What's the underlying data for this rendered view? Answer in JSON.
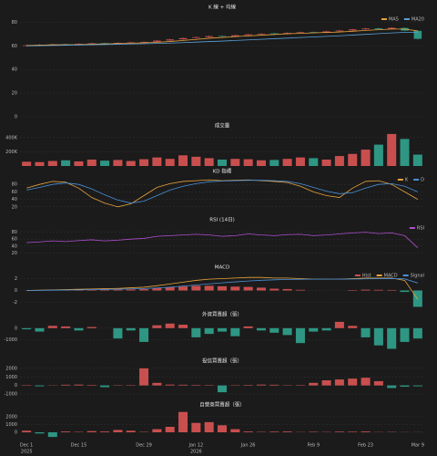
{
  "chart_data": [
    {
      "type": "candlestick",
      "title": "K 線 + 均線",
      "categories": [
        "Dec 1",
        null,
        null,
        null,
        "Dec 15",
        null,
        null,
        null,
        null,
        "Dec 29",
        null,
        null,
        null,
        "Jan 12",
        null,
        null,
        null,
        "Jan 26",
        null,
        null,
        null,
        null,
        "Feb 9",
        null,
        null,
        null,
        "Feb 23",
        null,
        null,
        null,
        "Mar 9"
      ],
      "category_years": [
        "2025",
        null,
        null,
        null,
        null,
        null,
        null,
        null,
        null,
        null,
        null,
        null,
        null,
        "2026",
        null,
        null,
        null,
        null,
        null,
        null,
        null,
        null,
        null,
        null,
        null,
        null,
        null,
        null,
        null,
        null,
        null
      ],
      "open": [
        60.0,
        60.6,
        61.1,
        61.4,
        61.2,
        61.9,
        62.3,
        62.1,
        62.7,
        63.1,
        63.5,
        64.6,
        65.6,
        66.8,
        67.5,
        68.4,
        68.1,
        69.1,
        69.9,
        70.6,
        70.2,
        71.1,
        71.7,
        71.3,
        72.4,
        73.1,
        74.1,
        74.9,
        74.3,
        75.2,
        72.8
      ],
      "high": [
        61.1,
        61.6,
        61.9,
        62.0,
        62.4,
        62.8,
        62.9,
        63.2,
        63.6,
        64.0,
        65.1,
        66.1,
        67.2,
        68.0,
        68.9,
        69.0,
        69.6,
        70.4,
        71.0,
        71.2,
        71.6,
        72.2,
        72.3,
        72.9,
        73.6,
        74.6,
        75.4,
        75.5,
        75.9,
        75.8,
        73.4
      ],
      "low": [
        59.4,
        60.0,
        60.5,
        60.5,
        60.6,
        61.3,
        61.4,
        61.5,
        62.1,
        62.5,
        62.9,
        64.0,
        65.0,
        66.2,
        66.9,
        67.4,
        67.5,
        68.5,
        69.3,
        69.5,
        69.6,
        70.5,
        70.6,
        70.7,
        71.8,
        72.5,
        73.5,
        73.6,
        73.7,
        72.4,
        65.4
      ],
      "close": [
        60.5,
        61.0,
        61.3,
        61.1,
        61.8,
        62.2,
        62.0,
        62.6,
        63.0,
        63.4,
        64.5,
        65.5,
        66.6,
        67.4,
        68.3,
        68.0,
        69.0,
        69.8,
        70.4,
        70.1,
        71.0,
        71.6,
        71.2,
        72.3,
        73.0,
        74.0,
        74.8,
        74.2,
        75.3,
        73.0,
        66.0
      ],
      "up_color": "#c94f4f",
      "down_color": "#2e9683",
      "series": [
        {
          "name": "MA5",
          "color": "#e8a33c",
          "values": [
            60.3,
            60.6,
            60.9,
            61.0,
            61.1,
            61.5,
            61.7,
            61.9,
            62.3,
            62.6,
            63.1,
            63.7,
            64.6,
            65.5,
            66.5,
            67.2,
            67.9,
            68.5,
            69.1,
            69.7,
            70.3,
            70.6,
            71.1,
            71.4,
            71.8,
            72.4,
            73.1,
            73.7,
            74.3,
            74.3,
            72.7
          ]
        },
        {
          "name": "MA20",
          "color": "#5aa0d8",
          "values": [
            60.0,
            60.2,
            60.4,
            60.6,
            60.8,
            61.0,
            61.2,
            61.4,
            61.6,
            61.8,
            62.1,
            62.4,
            62.8,
            63.2,
            63.7,
            64.1,
            64.6,
            65.1,
            65.6,
            66.1,
            66.6,
            67.1,
            67.6,
            68.1,
            68.6,
            69.2,
            69.8,
            70.4,
            71.0,
            71.5,
            71.6
          ]
        }
      ],
      "ylim": [
        0,
        85
      ],
      "yticks": [
        0,
        20,
        40,
        60,
        80
      ],
      "grid": true
    },
    {
      "type": "bar",
      "title": "成交量",
      "color_by": "price",
      "values": [
        60000,
        55000,
        70000,
        80000,
        65000,
        90000,
        75000,
        85000,
        70000,
        95000,
        120000,
        100000,
        150000,
        130000,
        110000,
        90000,
        100000,
        95000,
        80000,
        85000,
        100000,
        120000,
        110000,
        90000,
        140000,
        170000,
        230000,
        300000,
        450000,
        380000,
        160000
      ],
      "ylim": [
        0,
        500000
      ],
      "yticks": [
        {
          "value": 200000,
          "label": "200K"
        },
        {
          "value": 400000,
          "label": "400K"
        }
      ],
      "grid": true
    },
    {
      "type": "line",
      "title": "KD 指標",
      "series": [
        {
          "name": "K",
          "color": "#e8a33c",
          "values": [
            70,
            80,
            88,
            86,
            70,
            45,
            30,
            20,
            28,
            50,
            72,
            82,
            88,
            90,
            92,
            90,
            91,
            92,
            90,
            88,
            85,
            75,
            60,
            50,
            45,
            70,
            88,
            90,
            80,
            60,
            40
          ]
        },
        {
          "name": "D",
          "color": "#4a90d9",
          "values": [
            65,
            72,
            80,
            84,
            80,
            68,
            52,
            38,
            30,
            35,
            50,
            65,
            75,
            82,
            87,
            89,
            90,
            91,
            91,
            90,
            88,
            82,
            72,
            62,
            55,
            58,
            70,
            80,
            82,
            75,
            60
          ]
        }
      ],
      "ylim": [
        0,
        100
      ],
      "yticks": [
        20,
        40,
        60,
        80
      ],
      "grid": true
    },
    {
      "type": "line",
      "title": "RSI (14日)",
      "series": [
        {
          "name": "RSI",
          "color": "#b04fd0",
          "values": [
            50,
            52,
            55,
            53,
            56,
            58,
            55,
            57,
            60,
            62,
            68,
            70,
            72,
            74,
            72,
            68,
            70,
            75,
            72,
            70,
            73,
            74,
            70,
            72,
            75,
            78,
            80,
            76,
            78,
            70,
            35
          ]
        }
      ],
      "ylim": [
        0,
        100
      ],
      "yticks": [
        20,
        40,
        60,
        80
      ],
      "grid": true
    },
    {
      "type": "combo",
      "title": "MACD",
      "series": [
        {
          "name": "Hist",
          "kind": "bar",
          "color": "#c94f4f",
          "neg_color": "#2e9683",
          "values": [
            0,
            0.03,
            0.05,
            0.07,
            0.1,
            0.1,
            0.12,
            0.13,
            0.18,
            0.22,
            0.38,
            0.54,
            0.67,
            0.78,
            0.79,
            0.71,
            0.65,
            0.6,
            0.48,
            0.3,
            0.24,
            0.11,
            0,
            0,
            0,
            0.08,
            0.14,
            0.11,
            0.09,
            -0.25,
            -2.76
          ]
        },
        {
          "name": "MACD",
          "kind": "line",
          "color": "#e8a33c",
          "values": [
            0,
            0.05,
            0.1,
            0.15,
            0.2,
            0.25,
            0.3,
            0.35,
            0.45,
            0.55,
            0.8,
            1.1,
            1.4,
            1.7,
            1.9,
            2.0,
            2.1,
            2.2,
            2.2,
            2.1,
            2.1,
            2.0,
            1.9,
            1.9,
            1.9,
            2.0,
            2.1,
            2.1,
            2.1,
            1.7,
            -1.5
          ]
        },
        {
          "name": "Signal",
          "kind": "line",
          "color": "#4a90d9",
          "values": [
            0,
            0.02,
            0.05,
            0.08,
            0.1,
            0.15,
            0.18,
            0.22,
            0.27,
            0.33,
            0.42,
            0.56,
            0.73,
            0.92,
            1.11,
            1.29,
            1.45,
            1.6,
            1.72,
            1.8,
            1.86,
            1.89,
            1.9,
            1.9,
            1.9,
            1.92,
            1.96,
            1.99,
            2.01,
            1.95,
            1.26
          ]
        }
      ],
      "ylim": [
        -3,
        3
      ],
      "yticks": [
        -2,
        0,
        2
      ],
      "grid": true
    },
    {
      "type": "bar",
      "title": "外資買賣超（張）",
      "color_by": "sign",
      "pos_color": "#c94f4f",
      "neg_color": "#2e9683",
      "values": [
        -100,
        -300,
        200,
        150,
        -200,
        100,
        0,
        -900,
        -200,
        -1200,
        250,
        400,
        300,
        -800,
        -500,
        -300,
        -700,
        150,
        -200,
        -400,
        -600,
        -1300,
        -300,
        -200,
        550,
        200,
        -800,
        -1500,
        -1800,
        -1200,
        -900
      ],
      "ylim": [
        -2000,
        700
      ],
      "yticks": [
        -1000,
        0
      ],
      "grid": true
    },
    {
      "type": "bar",
      "title": "投信買賣超（張）",
      "color_by": "sign",
      "pos_color": "#c94f4f",
      "neg_color": "#2e9683",
      "values": [
        50,
        -100,
        30,
        80,
        100,
        60,
        -200,
        40,
        50,
        2000,
        300,
        100,
        80,
        60,
        50,
        -800,
        40,
        60,
        100,
        80,
        40,
        50,
        300,
        600,
        700,
        800,
        900,
        500,
        -300,
        -150,
        -100
      ],
      "ylim": [
        -1000,
        2200
      ],
      "yticks": [
        -1000,
        0,
        1000,
        2000
      ],
      "grid": true
    },
    {
      "type": "bar",
      "title": "自營商買賣超（張）",
      "color_by": "sign",
      "pos_color": "#c94f4f",
      "neg_color": "#2e9683",
      "values": [
        200,
        -150,
        -600,
        100,
        50,
        150,
        100,
        300,
        200,
        50,
        400,
        700,
        2600,
        1200,
        1300,
        900,
        400,
        100,
        50,
        80,
        100,
        30,
        60,
        40,
        80,
        70,
        100,
        30,
        40,
        20,
        20
      ],
      "ylim": [
        -700,
        2800
      ],
      "yticks": [
        0,
        1000,
        2000
      ],
      "grid": true
    }
  ]
}
